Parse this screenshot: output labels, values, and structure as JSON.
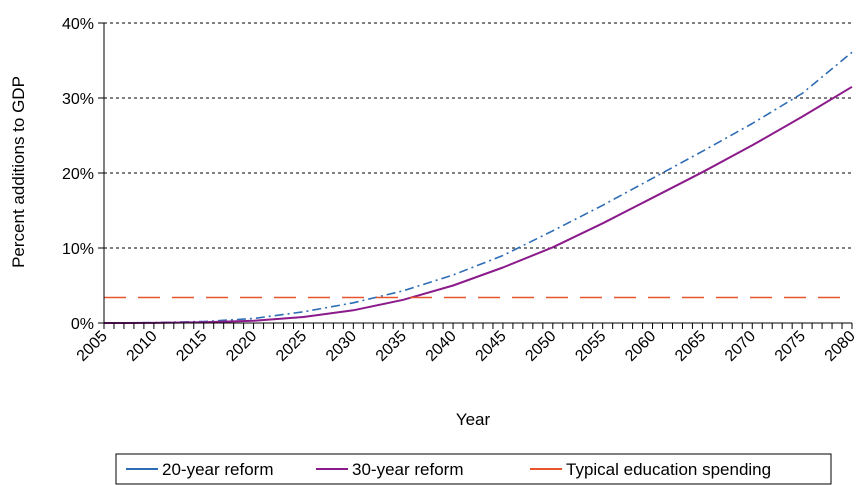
{
  "chart_data": {
    "type": "line",
    "title": "",
    "xlabel": "Year",
    "ylabel": "Percent additions to GDP",
    "xlim": [
      2005,
      2080
    ],
    "ylim": [
      0,
      40
    ],
    "x_ticks": [
      "2005",
      "2010",
      "2015",
      "2020",
      "2025",
      "2030",
      "2035",
      "2040",
      "2045",
      "2050",
      "2055",
      "2060",
      "2065",
      "2070",
      "2075",
      "2080"
    ],
    "y_ticks": [
      "0%",
      "10%",
      "20%",
      "30%",
      "40%"
    ],
    "grid": "horizontal dotted",
    "legend_position": "bottom",
    "series": [
      {
        "name": "20-year reform",
        "color": "#2e6db4",
        "style": "dash-dot",
        "x": [
          2005,
          2010,
          2015,
          2020,
          2025,
          2030,
          2035,
          2040,
          2045,
          2050,
          2055,
          2060,
          2065,
          2070,
          2075,
          2080
        ],
        "y": [
          0.0,
          0.05,
          0.2,
          0.6,
          1.5,
          2.7,
          4.3,
          6.4,
          9.0,
          12.3,
          15.7,
          19.3,
          22.9,
          26.6,
          30.6,
          36.1
        ]
      },
      {
        "name": "30-year reform",
        "color": "#8b1a8b",
        "style": "solid",
        "x": [
          2005,
          2010,
          2015,
          2020,
          2025,
          2030,
          2035,
          2040,
          2045,
          2050,
          2055,
          2060,
          2065,
          2070,
          2075,
          2080
        ],
        "y": [
          0.0,
          0.02,
          0.1,
          0.3,
          0.8,
          1.7,
          3.1,
          5.0,
          7.4,
          10.1,
          13.3,
          16.7,
          20.1,
          23.7,
          27.5,
          31.5
        ]
      },
      {
        "name": "Typical education spending",
        "color": "#e8542c",
        "style": "long-dash",
        "x": [
          2005,
          2080
        ],
        "y": [
          3.4,
          3.4
        ]
      }
    ]
  }
}
